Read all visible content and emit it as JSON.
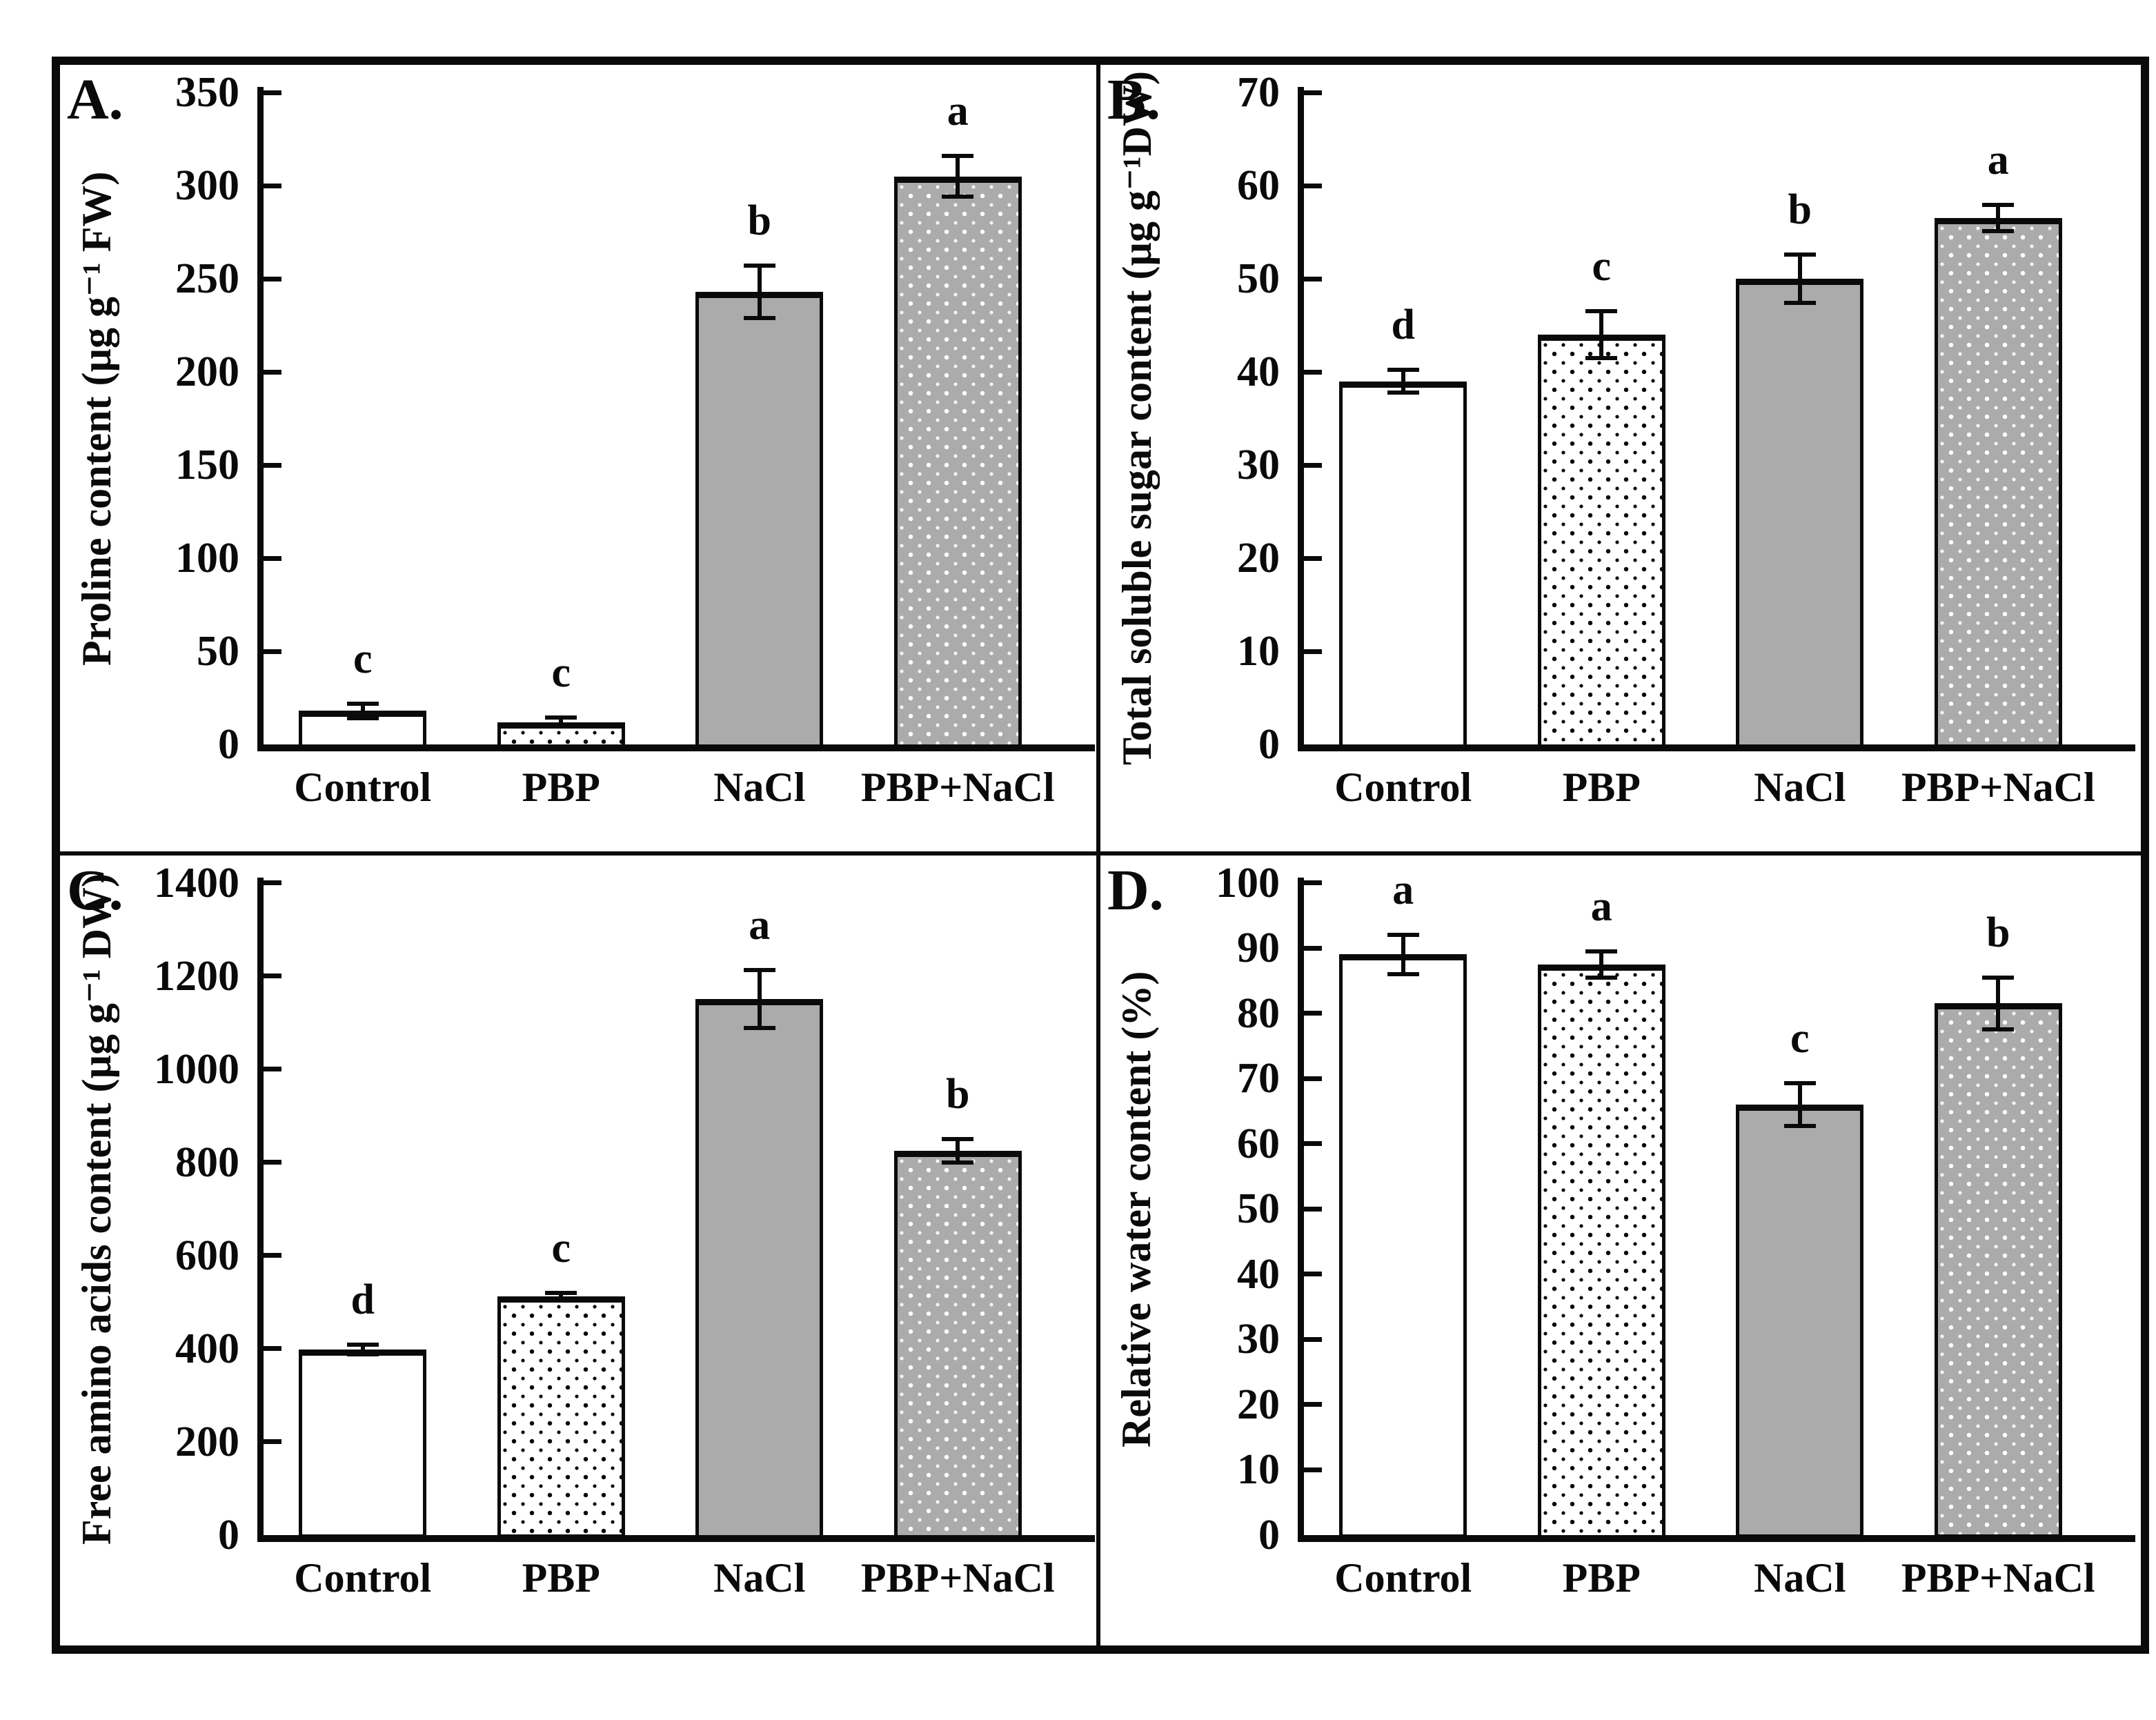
{
  "colors": {
    "ink": "#0a0a0a",
    "bar_gray": "#ababab",
    "background": "#ffffff"
  },
  "chart_data": [
    {
      "panel": "A",
      "panel_label": "A.",
      "type": "bar",
      "title": "",
      "xlabel": "",
      "ylabel": "Proline content (µg g⁻¹ FW)",
      "ylim": [
        0,
        350
      ],
      "ytick_step": 50,
      "yticks": [
        0,
        50,
        100,
        150,
        200,
        250,
        300,
        350
      ],
      "grid": false,
      "legend_position": "none",
      "categories": [
        "Control",
        "PBP",
        "NaCl",
        "PBP+NaCl"
      ],
      "values": [
        18,
        12,
        243,
        305
      ],
      "errors": [
        4,
        2.5,
        14,
        11
      ],
      "sig_letters": [
        "c",
        "c",
        "b",
        "a"
      ],
      "bar_styles": [
        "plain-white",
        "black-dots-on-white",
        "solid-gray",
        "white-dots-on-gray"
      ]
    },
    {
      "panel": "B",
      "panel_label": "B.",
      "type": "bar",
      "title": "",
      "xlabel": "",
      "ylabel": "Total soluble sugar content (µg g⁻¹DW)",
      "ylim": [
        0,
        70
      ],
      "ytick_step": 10,
      "yticks": [
        0,
        10,
        20,
        30,
        40,
        50,
        60,
        70
      ],
      "grid": false,
      "legend_position": "none",
      "categories": [
        "Control",
        "PBP",
        "NaCl",
        "PBP+NaCl"
      ],
      "values": [
        39,
        44,
        50,
        56.5
      ],
      "errors": [
        1.2,
        2.5,
        2.6,
        1.4
      ],
      "sig_letters": [
        "d",
        "c",
        "b",
        "a"
      ],
      "bar_styles": [
        "plain-white",
        "black-dots-on-white",
        "solid-gray",
        "white-dots-on-gray"
      ]
    },
    {
      "panel": "C",
      "panel_label": "C.",
      "type": "bar",
      "title": "",
      "xlabel": "",
      "ylabel": "Free amino acids content (µg g⁻¹ DW)",
      "ylim": [
        0,
        1400
      ],
      "ytick_step": 200,
      "yticks": [
        0,
        200,
        400,
        600,
        800,
        1000,
        1200,
        1400
      ],
      "grid": false,
      "legend_position": "none",
      "categories": [
        "Control",
        "PBP",
        "NaCl",
        "PBP+NaCl"
      ],
      "values": [
        398,
        512,
        1150,
        825
      ],
      "errors": [
        10,
        8,
        62,
        25
      ],
      "sig_letters": [
        "d",
        "c",
        "a",
        "b"
      ],
      "bar_styles": [
        "plain-white",
        "black-dots-on-white",
        "solid-gray",
        "white-dots-on-gray"
      ]
    },
    {
      "panel": "D",
      "panel_label": "D.",
      "type": "bar",
      "title": "",
      "xlabel": "",
      "ylabel": "Relative water content (%)",
      "ylim": [
        0,
        100
      ],
      "ytick_step": 10,
      "yticks": [
        0,
        10,
        20,
        30,
        40,
        50,
        60,
        70,
        80,
        90,
        100
      ],
      "grid": false,
      "legend_position": "none",
      "categories": [
        "Control",
        "PBP",
        "NaCl",
        "PBP+NaCl"
      ],
      "values": [
        89,
        87.5,
        66,
        81.5
      ],
      "errors": [
        3,
        2,
        3.3,
        4
      ],
      "sig_letters": [
        "a",
        "a",
        "c",
        "b"
      ],
      "bar_styles": [
        "plain-white",
        "black-dots-on-white",
        "solid-gray",
        "white-dots-on-gray"
      ]
    }
  ]
}
